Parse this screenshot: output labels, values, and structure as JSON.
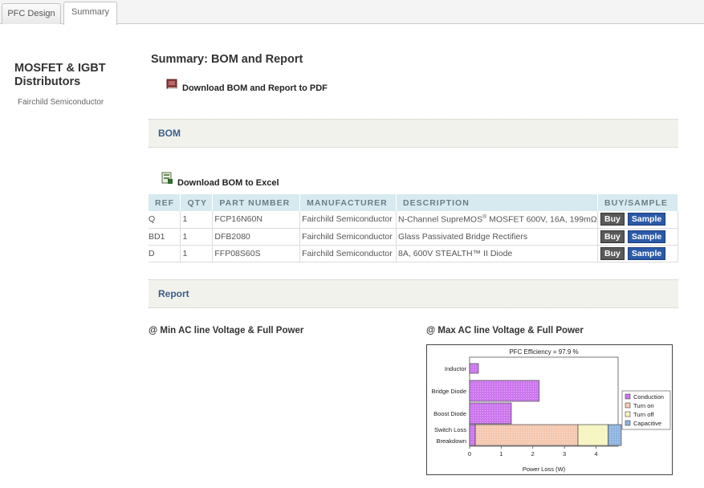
{
  "tabs": [
    {
      "label": "PFC Design",
      "active": false
    },
    {
      "label": "Summary",
      "active": true
    }
  ],
  "sidebar": {
    "title": "MOSFET & IGBT Distributors",
    "link": "Fairchild Semiconductor"
  },
  "main": {
    "title": "Summary: BOM and Report",
    "download_pdf": "Download BOM and Report to PDF",
    "bom_section": "BOM",
    "download_excel": "Download BOM to Excel",
    "report_section": "Report",
    "min_condition": "@ Min AC line Voltage & Full Power",
    "max_condition": "@ Max AC line Voltage & Full Power"
  },
  "bom": {
    "columns": [
      "REF",
      "QTY",
      "PART NUMBER",
      "MANUFACTURER",
      "DESCRIPTION",
      "BUY/SAMPLE"
    ],
    "rows": [
      {
        "ref": "Q",
        "qty": "1",
        "part": "FCP16N60N",
        "mfr": "Fairchild Semiconductor",
        "desc_pre": "N-Channel SupreMOS",
        "desc_sup": "®",
        "desc_post": " MOSFET 600V, 16A, 199mΩ"
      },
      {
        "ref": "BD1",
        "qty": "1",
        "part": "DFB2080",
        "mfr": "Fairchild Semiconductor",
        "desc_pre": "Glass Passivated Bridge Rectifiers",
        "desc_sup": "",
        "desc_post": ""
      },
      {
        "ref": "D",
        "qty": "1",
        "part": "FFP08S60S",
        "mfr": "Fairchild Semiconductor",
        "desc_pre": "8A, 600V STEALTH™ II Diode",
        "desc_sup": "",
        "desc_post": ""
      }
    ],
    "buy_label": "Buy",
    "sample_label": "Sample"
  },
  "colors": {
    "section_text": "#3a5d8c",
    "buy_button": "#5a5a5a",
    "sample_button": "#2a5aa8",
    "conduction": "#cc77ee",
    "turn_on": "#f5c8b0",
    "turn_off": "#f6f4c0",
    "capacitive": "#8fb4e0"
  },
  "chart_data": {
    "type": "bar",
    "orientation": "horizontal",
    "stacked": true,
    "title": "PFC Efficiency = 97.9 %",
    "xlabel": "Power Loss (W)",
    "ylabel": "",
    "xlim": [
      0,
      4.7
    ],
    "xticks": [
      "0",
      "1",
      "2",
      "3",
      "4"
    ],
    "categories": [
      "Inductor",
      "Bridge Diode",
      "Boost Diode",
      "Switch Loss"
    ],
    "extra_label": "Breakdown",
    "series": [
      {
        "name": "Conduction",
        "color": "#cc77ee",
        "values": [
          0.28,
          2.2,
          1.32,
          0.18
        ]
      },
      {
        "name": "Turn on",
        "color": "#f5c8b0",
        "values": [
          0,
          0,
          0,
          3.25
        ]
      },
      {
        "name": "Turn off",
        "color": "#f6f4c0",
        "values": [
          0,
          0,
          0,
          0.95
        ]
      },
      {
        "name": "Capacitive",
        "color": "#8fb4e0",
        "values": [
          0,
          0,
          0,
          0.42
        ]
      }
    ],
    "legend": "right"
  }
}
